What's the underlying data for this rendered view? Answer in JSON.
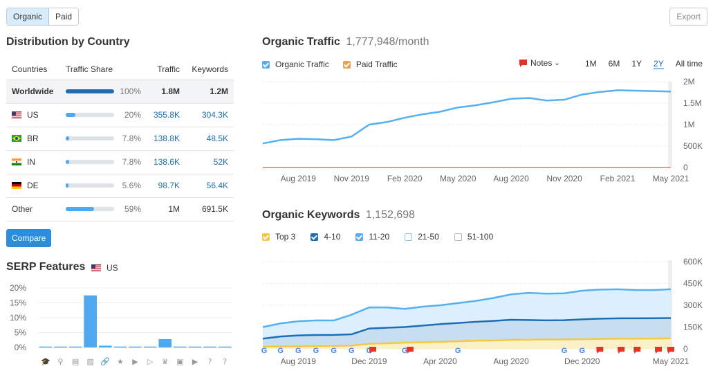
{
  "toggle": {
    "organic": "Organic",
    "paid": "Paid"
  },
  "export_label": "Export",
  "country": {
    "title": "Distribution by Country",
    "headers": [
      "Countries",
      "Traffic Share",
      "Traffic",
      "Keywords"
    ],
    "rows": [
      {
        "name": "Worldwide",
        "flag": "",
        "share": 1.0,
        "pct": "100%",
        "traffic": "1.8M",
        "keywords": "1.2M"
      },
      {
        "name": "US",
        "flag": "us",
        "share": 0.2,
        "pct": "20%",
        "traffic": "355.8K",
        "keywords": "304.3K"
      },
      {
        "name": "BR",
        "flag": "br",
        "share": 0.078,
        "pct": "7.8%",
        "traffic": "138.8K",
        "keywords": "48.5K"
      },
      {
        "name": "IN",
        "flag": "in",
        "share": 0.078,
        "pct": "7.8%",
        "traffic": "138.6K",
        "keywords": "52K"
      },
      {
        "name": "DE",
        "flag": "de",
        "share": 0.056,
        "pct": "5.6%",
        "traffic": "98.7K",
        "keywords": "56.4K"
      },
      {
        "name": "Other",
        "flag": "",
        "share": 0.59,
        "pct": "59%",
        "traffic": "1M",
        "keywords": "691.5K"
      }
    ],
    "compare_label": "Compare"
  },
  "serp": {
    "title": "SERP Features",
    "country": "US",
    "icons": [
      "graduation-cap-icon",
      "map-pin-icon",
      "document-icon",
      "image-icon",
      "link-icon",
      "star-icon",
      "play-icon",
      "video-icon",
      "crown-icon",
      "gallery-icon",
      "video-box-icon",
      "question-circle-icon",
      "help-icon"
    ]
  },
  "traffic": {
    "title": "Organic Traffic",
    "value": "1,777,948/month",
    "legend": [
      "Organic Traffic",
      "Paid Traffic"
    ],
    "notes_label": "Notes",
    "ranges": [
      "1M",
      "6M",
      "1Y",
      "2Y",
      "All time"
    ],
    "selected_range": "2Y"
  },
  "keywords": {
    "title": "Organic Keywords",
    "value": "1,152,698",
    "legend": [
      "Top 3",
      "4-10",
      "11-20",
      "21-50",
      "51-100"
    ]
  },
  "colors": {
    "organic": "#55b0ef",
    "paid": "#f0a04a",
    "top3": "#f5c842",
    "kw410": "#1c6db5",
    "kw1120": "#55b0ef"
  },
  "chart_data": [
    {
      "type": "line",
      "title": "Organic Traffic",
      "x": [
        "Jun 2019",
        "Jul 2019",
        "Aug 2019",
        "Sep 2019",
        "Oct 2019",
        "Nov 2019",
        "Dec 2019",
        "Jan 2020",
        "Feb 2020",
        "Mar 2020",
        "Apr 2020",
        "May 2020",
        "Jun 2020",
        "Jul 2020",
        "Aug 2020",
        "Sep 2020",
        "Oct 2020",
        "Nov 2020",
        "Dec 2020",
        "Jan 2021",
        "Feb 2021",
        "Mar 2021",
        "Apr 2021",
        "May 2021"
      ],
      "xticks": [
        "Aug 2019",
        "Nov 2019",
        "Feb 2020",
        "May 2020",
        "Aug 2020",
        "Nov 2020",
        "Feb 2021",
        "May 2021"
      ],
      "yticks": [
        "0",
        "500K",
        "1M",
        "1.5M",
        "2M"
      ],
      "ylim": [
        0,
        2000000
      ],
      "series": [
        {
          "name": "Organic Traffic",
          "values": [
            560000,
            640000,
            670000,
            660000,
            640000,
            720000,
            1000000,
            1060000,
            1160000,
            1240000,
            1300000,
            1400000,
            1450000,
            1520000,
            1600000,
            1620000,
            1560000,
            1580000,
            1700000,
            1760000,
            1800000,
            1790000,
            1780000,
            1770000
          ]
        },
        {
          "name": "Paid Traffic",
          "values": [
            0,
            0,
            0,
            0,
            0,
            0,
            0,
            0,
            0,
            0,
            0,
            0,
            0,
            0,
            0,
            0,
            0,
            0,
            0,
            0,
            0,
            0,
            0,
            0
          ]
        }
      ],
      "grid": true
    },
    {
      "type": "area",
      "title": "Organic Keywords",
      "x": [
        "Jun 2019",
        "Jul 2019",
        "Aug 2019",
        "Sep 2019",
        "Oct 2019",
        "Nov 2019",
        "Dec 2019",
        "Jan 2020",
        "Feb 2020",
        "Mar 2020",
        "Apr 2020",
        "May 2020",
        "Jun 2020",
        "Jul 2020",
        "Aug 2020",
        "Sep 2020",
        "Oct 2020",
        "Nov 2020",
        "Dec 2020",
        "Jan 2021",
        "Feb 2021",
        "Mar 2021",
        "Apr 2021",
        "May 2021"
      ],
      "xticks": [
        "Aug 2019",
        "Dec 2019",
        "Apr 2020",
        "Aug 2020",
        "Dec 2020",
        "May 2021"
      ],
      "yticks": [
        "0",
        "150K",
        "300K",
        "450K",
        "600K"
      ],
      "ylim": [
        0,
        600000
      ],
      "series": [
        {
          "name": "Top 3",
          "values": [
            15000,
            17000,
            18000,
            19000,
            20000,
            22000,
            35000,
            38000,
            42000,
            45000,
            48000,
            52000,
            56000,
            58000,
            62000,
            63000,
            64000,
            65000,
            66000,
            68000,
            70000,
            70000,
            71000,
            72000
          ]
        },
        {
          "name": "4-10",
          "values": [
            70000,
            85000,
            92000,
            95000,
            96000,
            100000,
            140000,
            145000,
            150000,
            160000,
            170000,
            178000,
            186000,
            192000,
            200000,
            198000,
            196000,
            197000,
            203000,
            208000,
            210000,
            210000,
            211000,
            212000
          ]
        },
        {
          "name": "11-20",
          "values": [
            150000,
            175000,
            190000,
            196000,
            195000,
            235000,
            285000,
            285000,
            275000,
            290000,
            300000,
            315000,
            330000,
            350000,
            375000,
            385000,
            380000,
            382000,
            400000,
            408000,
            410000,
            405000,
            405000,
            410000
          ]
        }
      ],
      "grid": true
    },
    {
      "type": "bar",
      "title": "SERP Features",
      "yticks": [
        "0%",
        "5%",
        "10%",
        "15%",
        "20%"
      ],
      "ylim": [
        0,
        20
      ],
      "values": [
        0.3,
        0.3,
        0.3,
        17.5,
        0.6,
        0.3,
        0.3,
        0.3,
        2.8,
        0.3,
        0.3,
        0.3,
        0.3
      ]
    }
  ]
}
